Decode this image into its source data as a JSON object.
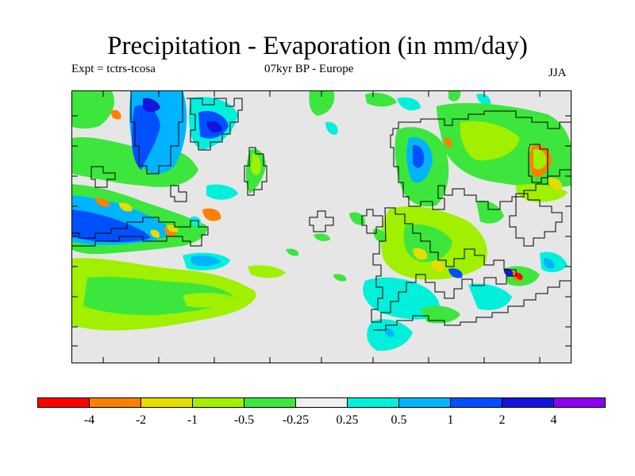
{
  "title": "Precipitation - Evaporation (in mm/day)",
  "subtitle_left": "Expt = tctrs-tcosa",
  "subtitle_center": "07kyr BP - Europe",
  "subtitle_right": "JJA",
  "colors": {
    "background": "#e6e6e6",
    "land_outline": "#000000"
  },
  "legend": {
    "colors": [
      "#ff0000",
      "#ff8000",
      "#e6dc00",
      "#a0f000",
      "#3ce63c",
      "#f0f0f0",
      "#00f0dc",
      "#00b4ff",
      "#0050ff",
      "#1414dc",
      "#8c00f0"
    ],
    "labels": [
      "-4",
      "-2",
      "-1",
      "-0.5",
      "-0.25",
      "0.25",
      "0.5",
      "1",
      "2",
      "4"
    ]
  }
}
